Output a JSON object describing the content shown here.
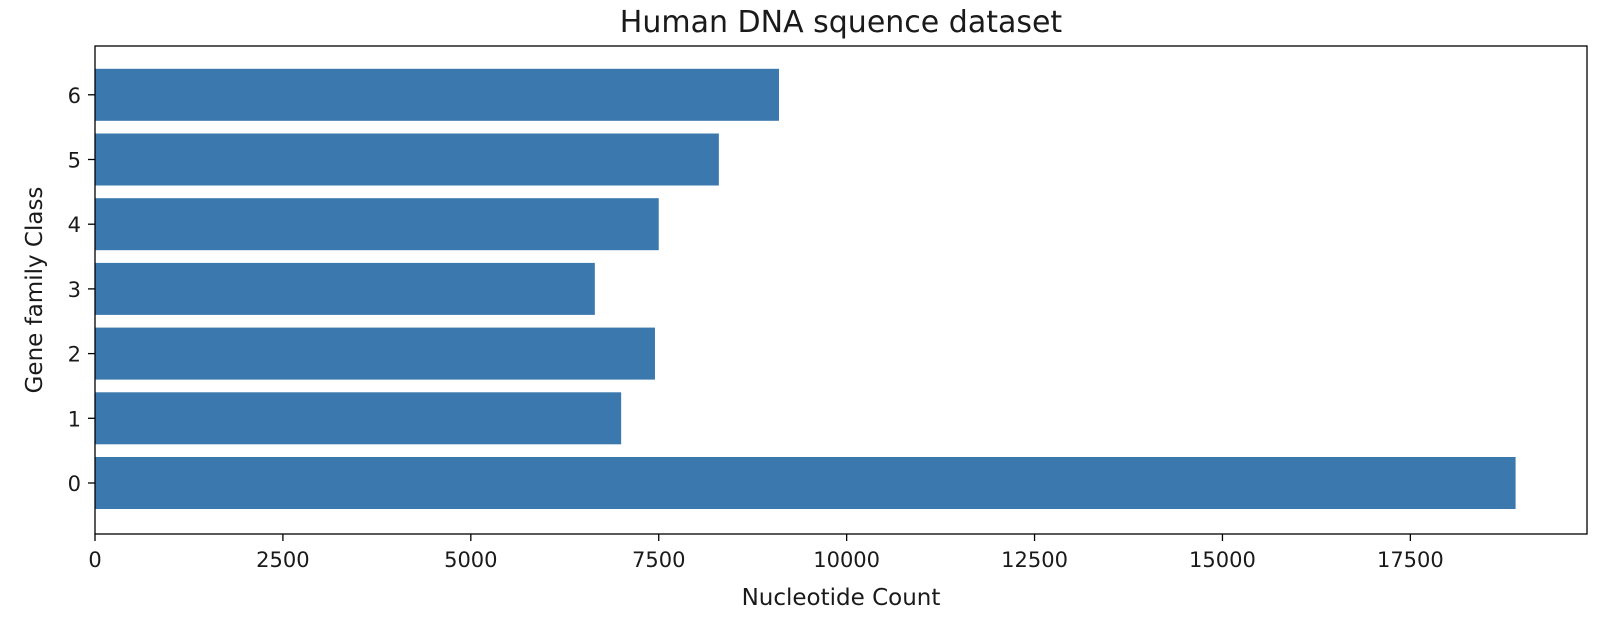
{
  "chart_data": {
    "type": "bar",
    "orientation": "horizontal",
    "title": "Human DNA squence dataset",
    "xlabel": "Nucleotide Count",
    "ylabel": "Gene family Class",
    "categories": [
      "0",
      "1",
      "2",
      "3",
      "4",
      "5",
      "6"
    ],
    "values": [
      18900,
      7000,
      7450,
      6650,
      7500,
      8300,
      9100
    ],
    "xlim": [
      0,
      19850
    ],
    "xticks": [
      0,
      2500,
      5000,
      7500,
      10000,
      12500,
      15000,
      17500
    ],
    "xtick_labels": [
      "0",
      "2500",
      "5000",
      "7500",
      "10000",
      "12500",
      "15000",
      "17500"
    ],
    "grid": false,
    "bar_color": "#3a78ae"
  }
}
